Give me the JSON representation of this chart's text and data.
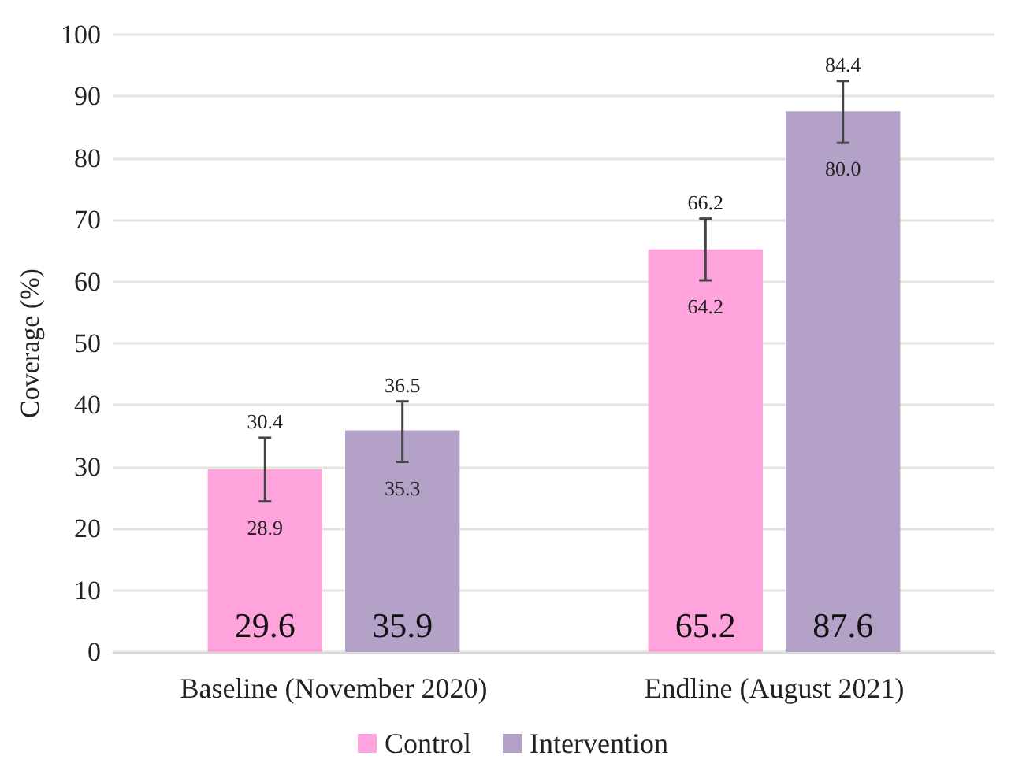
{
  "chart_data": {
    "type": "bar",
    "ylabel": "Coverage (%)",
    "categories": [
      "Baseline (November 2020)",
      "Endline (August 2021)"
    ],
    "series": [
      {
        "name": "Control",
        "color": "#ffa3dc",
        "values": [
          29.6,
          65.2
        ],
        "errors": [
          [
            24.4,
            34.7
          ],
          [
            60.2,
            70.2
          ]
        ]
      },
      {
        "name": "Intervention",
        "color": "#b3a1c8",
        "values": [
          35.9,
          87.6
        ],
        "errors": [
          [
            30.8,
            40.6
          ],
          [
            82.5,
            92.5
          ]
        ]
      }
    ],
    "annotations": [
      "30.4",
      "28.9",
      "36.5",
      "35.3",
      "66.2",
      "64.2",
      "84.4",
      "80.0"
    ],
    "ylim": [
      0,
      100
    ],
    "yticks": [
      0,
      10,
      20,
      30,
      40,
      50,
      60,
      70,
      80,
      90,
      100
    ],
    "grid": "y",
    "legend": "bottom",
    "data_labels": true
  }
}
